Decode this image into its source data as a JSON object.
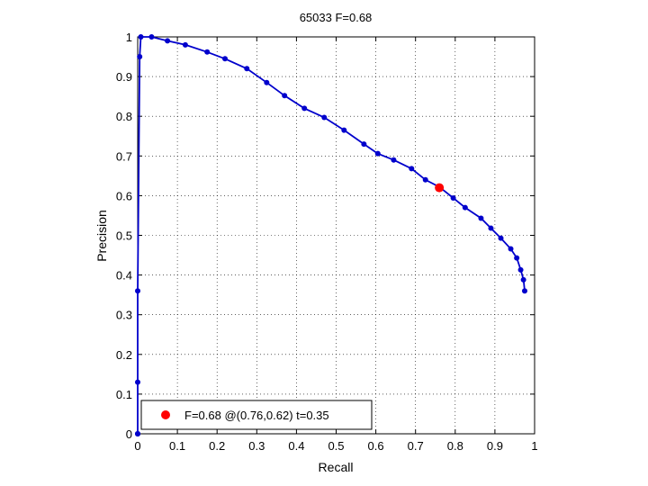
{
  "chart_data": {
    "type": "line",
    "title": "65033 F=0.68",
    "xlabel": "Recall",
    "ylabel": "Precision",
    "xlim": [
      0,
      1
    ],
    "ylim": [
      0,
      1
    ],
    "xticks": [
      "0",
      "0.1",
      "0.2",
      "0.3",
      "0.4",
      "0.5",
      "0.6",
      "0.7",
      "0.8",
      "0.9",
      "1"
    ],
    "yticks": [
      "0",
      "0.1",
      "0.2",
      "0.3",
      "0.4",
      "0.5",
      "0.6",
      "0.7",
      "0.8",
      "0.9",
      "1"
    ],
    "grid": true,
    "legend_position": "bottom-left",
    "series": [
      {
        "color": "#0000cc",
        "points": [
          [
            0.0,
            0.0
          ],
          [
            0.0,
            0.0
          ],
          [
            0.0,
            0.0
          ],
          [
            0.0,
            0.13
          ],
          [
            0.0,
            0.36
          ],
          [
            0.005,
            0.95
          ],
          [
            0.008,
            1.0
          ],
          [
            0.035,
            1.0
          ],
          [
            0.075,
            0.99
          ],
          [
            0.12,
            0.98
          ],
          [
            0.175,
            0.962
          ],
          [
            0.22,
            0.945
          ],
          [
            0.275,
            0.92
          ],
          [
            0.325,
            0.885
          ],
          [
            0.37,
            0.852
          ],
          [
            0.42,
            0.82
          ],
          [
            0.47,
            0.797
          ],
          [
            0.52,
            0.765
          ],
          [
            0.57,
            0.73
          ],
          [
            0.605,
            0.706
          ],
          [
            0.645,
            0.69
          ],
          [
            0.69,
            0.668
          ],
          [
            0.725,
            0.64
          ],
          [
            0.76,
            0.622
          ],
          [
            0.795,
            0.594
          ],
          [
            0.825,
            0.57
          ],
          [
            0.865,
            0.543
          ],
          [
            0.89,
            0.518
          ],
          [
            0.915,
            0.493
          ],
          [
            0.94,
            0.466
          ],
          [
            0.955,
            0.443
          ],
          [
            0.965,
            0.413
          ],
          [
            0.972,
            0.388
          ],
          [
            0.975,
            0.36
          ]
        ]
      }
    ],
    "highlight": {
      "x": 0.76,
      "y": 0.62,
      "color": "#ff0000",
      "legend_label": "F=0.68 @(0.76,0.62) t=0.35"
    }
  }
}
